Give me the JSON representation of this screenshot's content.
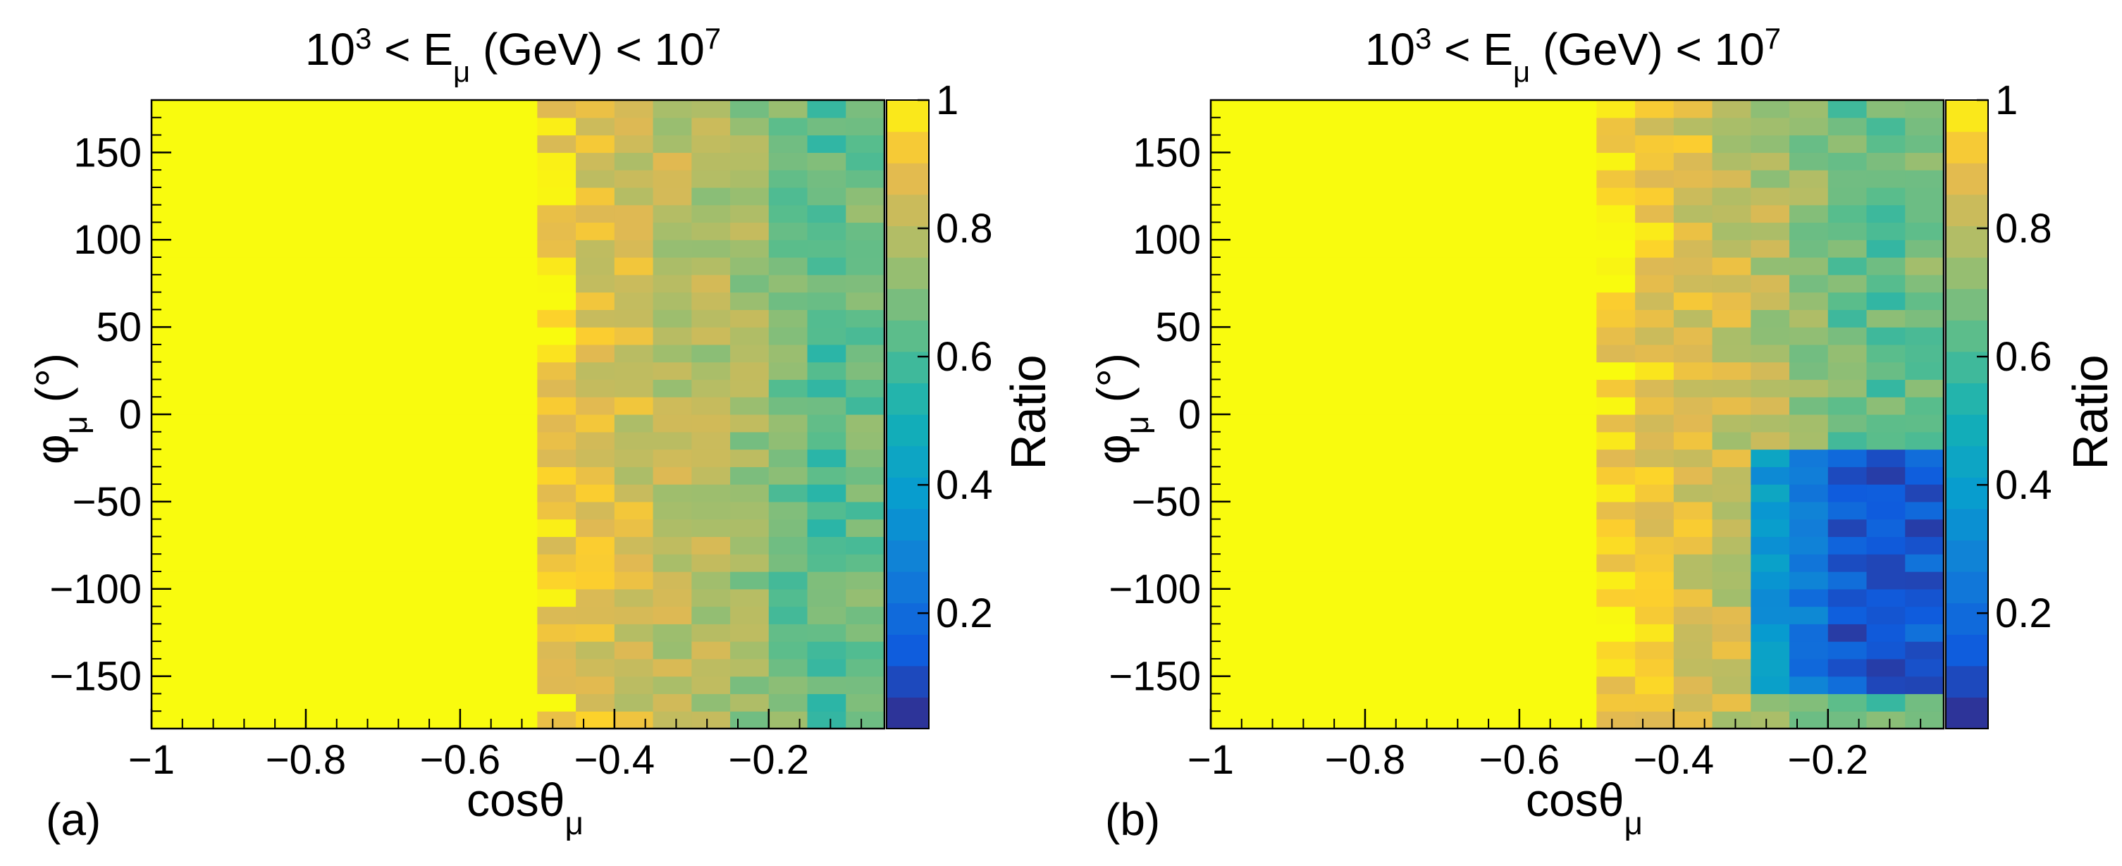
{
  "figure": {
    "panels": [
      {
        "label": "(a)",
        "title_base": "10",
        "title_exp": "3",
        "title_mid": " < E",
        "title_sub": "μ",
        "title_tail": " (GeV) < 10",
        "title_tail_exp": "7",
        "xlabel_main": "cosθ",
        "xlabel_sub": "μ",
        "ylabel_main": "φ",
        "ylabel_sub": "μ",
        "ylabel_unit": " (°)",
        "colorbar_label": "Ratio"
      },
      {
        "label": "(b)",
        "title_base": "10",
        "title_exp": "3",
        "title_mid": " < E",
        "title_sub": "μ",
        "title_tail": " (GeV) < 10",
        "title_tail_exp": "7",
        "xlabel_main": "cosθ",
        "xlabel_sub": "μ",
        "ylabel_main": "φ",
        "ylabel_sub": "μ",
        "ylabel_unit": " (°)",
        "colorbar_label": "Ratio"
      }
    ]
  },
  "chart_data": [
    {
      "type": "heatmap",
      "panel": "(a)",
      "title": "10^3 < E_μ (GeV) < 10^7",
      "xlabel": "cosθ_μ",
      "ylabel": "φ_μ (°)",
      "colorbar_label": "Ratio",
      "x_range": [
        -1.0,
        -0.05
      ],
      "y_range": [
        -180,
        180
      ],
      "x_bins": 19,
      "y_bins": 36,
      "x_ticks": [
        -1,
        -0.8,
        -0.6,
        -0.4,
        -0.2
      ],
      "x_tick_labels": [
        "−1",
        "−0.8",
        "−0.6",
        "−0.4",
        "−0.2"
      ],
      "y_ticks": [
        -150,
        -100,
        -50,
        0,
        50,
        100,
        150
      ],
      "y_tick_labels": [
        "−150",
        "−100",
        "−50",
        "0",
        "50",
        "100",
        "150"
      ],
      "z_range": [
        0.02,
        1.0
      ],
      "colorbar_ticks": [
        0.2,
        0.4,
        0.6,
        0.8,
        1
      ],
      "colorbar_tick_labels": [
        "0.2",
        "0.4",
        "0.6",
        "0.8",
        "1"
      ],
      "column_ratio_profile": {
        "x_bin_centers": [
          -0.975,
          -0.925,
          -0.875,
          -0.825,
          -0.775,
          -0.725,
          -0.675,
          -0.625,
          -0.575,
          -0.525,
          -0.475,
          -0.425,
          -0.375,
          -0.325,
          -0.275,
          -0.225,
          -0.175,
          -0.125,
          -0.075
        ],
        "typical_ratio": [
          1.0,
          1.0,
          1.0,
          1.0,
          1.0,
          1.0,
          1.0,
          1.0,
          1.0,
          1.0,
          0.93,
          0.88,
          0.84,
          0.8,
          0.78,
          0.74,
          0.67,
          0.62,
          0.66
        ]
      },
      "depleted_regions": []
    },
    {
      "type": "heatmap",
      "panel": "(b)",
      "title": "10^3 < E_μ (GeV) < 10^7",
      "xlabel": "cosθ_μ",
      "ylabel": "φ_μ (°)",
      "colorbar_label": "Ratio",
      "x_range": [
        -1.0,
        -0.05
      ],
      "y_range": [
        -180,
        180
      ],
      "x_bins": 19,
      "y_bins": 36,
      "x_ticks": [
        -1,
        -0.8,
        -0.6,
        -0.4,
        -0.2
      ],
      "x_tick_labels": [
        "−1",
        "−0.8",
        "−0.6",
        "−0.4",
        "−0.2"
      ],
      "y_ticks": [
        -150,
        -100,
        -50,
        0,
        50,
        100,
        150
      ],
      "y_tick_labels": [
        "−150",
        "−100",
        "−50",
        "0",
        "50",
        "100",
        "150"
      ],
      "z_range": [
        0.02,
        1.0
      ],
      "colorbar_ticks": [
        0.2,
        0.4,
        0.6,
        0.8,
        1
      ],
      "colorbar_tick_labels": [
        "0.2",
        "0.4",
        "0.6",
        "0.8",
        "1"
      ],
      "column_ratio_profile": {
        "x_bin_centers": [
          -0.975,
          -0.925,
          -0.875,
          -0.825,
          -0.775,
          -0.725,
          -0.675,
          -0.625,
          -0.575,
          -0.525,
          -0.475,
          -0.425,
          -0.375,
          -0.325,
          -0.275,
          -0.225,
          -0.175,
          -0.125,
          -0.075
        ],
        "typical_ratio": [
          1.0,
          1.0,
          1.0,
          1.0,
          1.0,
          1.0,
          1.0,
          1.0,
          1.0,
          1.0,
          0.94,
          0.9,
          0.86,
          0.82,
          0.79,
          0.72,
          0.66,
          0.64,
          0.68
        ]
      },
      "depleted_regions": [
        {
          "x_from": -0.3,
          "x_to": -0.05,
          "y_from": -160,
          "y_to": -20,
          "min_ratio": 0.05
        }
      ]
    }
  ]
}
